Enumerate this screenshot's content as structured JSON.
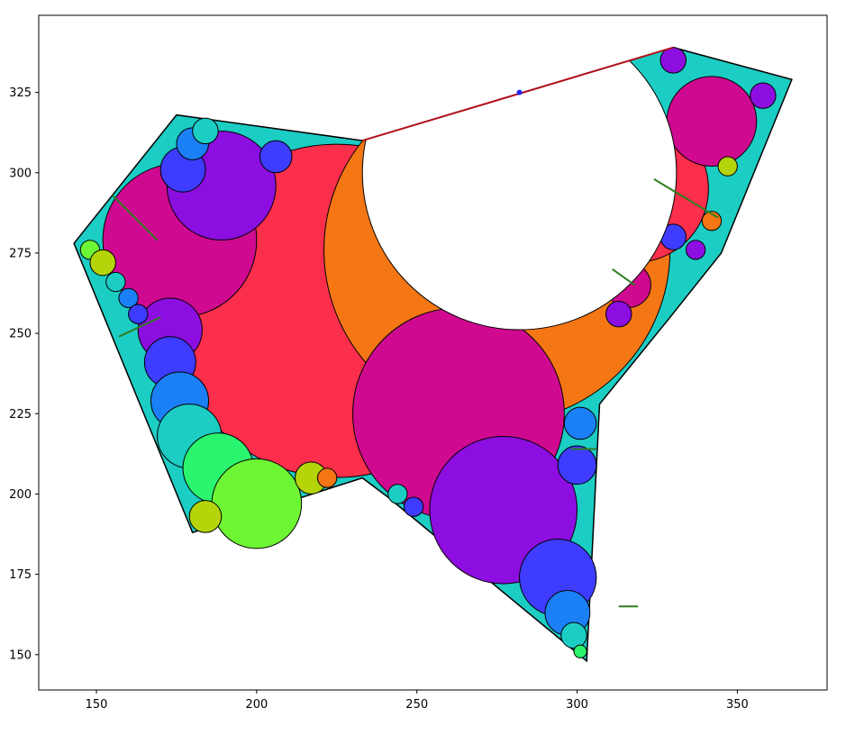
{
  "chart_data": {
    "type": "scatter",
    "description_free": true,
    "title": "",
    "xlabel": "",
    "ylabel": "",
    "xlim": [
      132,
      378
    ],
    "ylim": [
      139,
      349
    ],
    "grid": false,
    "x_ticks": [
      150,
      200,
      250,
      300,
      350
    ],
    "y_ticks": [
      150,
      175,
      200,
      225,
      250,
      275,
      300,
      325
    ],
    "x_tick_labels": [
      "150",
      "200",
      "250",
      "300",
      "350"
    ],
    "y_tick_labels": [
      "150",
      "175",
      "200",
      "225",
      "250",
      "275",
      "300",
      "325"
    ],
    "polygon": [
      [
        143,
        278
      ],
      [
        175,
        318
      ],
      [
        233,
        310
      ],
      [
        330,
        339
      ],
      [
        367,
        329
      ],
      [
        345,
        275
      ],
      [
        329,
        255
      ],
      [
        307,
        228
      ],
      [
        303,
        148
      ],
      [
        241,
        199
      ],
      [
        233,
        205
      ],
      [
        180,
        188
      ]
    ],
    "circles": [
      {
        "cx": 225,
        "cy": 257,
        "r": 52,
        "color": "#fb2e4b"
      },
      {
        "cx": 275,
        "cy": 276,
        "r": 54,
        "color": "#f47615"
      },
      {
        "cx": 263,
        "cy": 225,
        "r": 33,
        "color": "#cf0a90"
      },
      {
        "cx": 277,
        "cy": 195,
        "r": 23,
        "color": "#8c0ee0"
      },
      {
        "cx": 294,
        "cy": 174,
        "r": 12,
        "color": "#3d3cff"
      },
      {
        "cx": 297,
        "cy": 163,
        "r": 7,
        "color": "#1b7ff5"
      },
      {
        "cx": 299,
        "cy": 156,
        "r": 4,
        "color": "#1ccdc4"
      },
      {
        "cx": 301,
        "cy": 151,
        "r": 2,
        "color": "#2bf56f"
      },
      {
        "cx": 300,
        "cy": 209,
        "r": 6,
        "color": "#3d3cff"
      },
      {
        "cx": 301,
        "cy": 222,
        "r": 5,
        "color": "#1b7ff5"
      },
      {
        "cx": 318,
        "cy": 295,
        "r": 23,
        "color": "#fb2e4b"
      },
      {
        "cx": 342,
        "cy": 316,
        "r": 14,
        "color": "#cf0a90"
      },
      {
        "cx": 330,
        "cy": 335,
        "r": 4,
        "color": "#8c0ee0"
      },
      {
        "cx": 358,
        "cy": 324,
        "r": 4,
        "color": "#8c0ee0"
      },
      {
        "cx": 347,
        "cy": 302,
        "r": 3,
        "color": "#b6d40a"
      },
      {
        "cx": 342,
        "cy": 285,
        "r": 3,
        "color": "#f47615"
      },
      {
        "cx": 316,
        "cy": 265,
        "r": 7,
        "color": "#cf0a90"
      },
      {
        "cx": 313,
        "cy": 256,
        "r": 4,
        "color": "#8c0ee0"
      },
      {
        "cx": 176,
        "cy": 279,
        "r": 24,
        "color": "#cf0a90"
      },
      {
        "cx": 189,
        "cy": 296,
        "r": 17,
        "color": "#8c0ee0"
      },
      {
        "cx": 177,
        "cy": 301,
        "r": 7,
        "color": "#3d3cff"
      },
      {
        "cx": 180,
        "cy": 309,
        "r": 5,
        "color": "#1b7ff5"
      },
      {
        "cx": 184,
        "cy": 313,
        "r": 4,
        "color": "#1ccdc4"
      },
      {
        "cx": 206,
        "cy": 305,
        "r": 5,
        "color": "#3d3cff"
      },
      {
        "cx": 173,
        "cy": 251,
        "r": 10,
        "color": "#8c0ee0"
      },
      {
        "cx": 173,
        "cy": 241,
        "r": 8,
        "color": "#3d3cff"
      },
      {
        "cx": 176,
        "cy": 229,
        "r": 9,
        "color": "#1b7ff5"
      },
      {
        "cx": 179,
        "cy": 218,
        "r": 10,
        "color": "#1ccdc4"
      },
      {
        "cx": 188,
        "cy": 208,
        "r": 11,
        "color": "#2bf56f"
      },
      {
        "cx": 200,
        "cy": 197,
        "r": 14,
        "color": "#6ef534"
      },
      {
        "cx": 184,
        "cy": 193,
        "r": 5,
        "color": "#b6d40a"
      },
      {
        "cx": 217,
        "cy": 205,
        "r": 5,
        "color": "#b6d40a"
      },
      {
        "cx": 222,
        "cy": 205,
        "r": 3,
        "color": "#f47615"
      },
      {
        "cx": 148,
        "cy": 276,
        "r": 3,
        "color": "#6ef534"
      },
      {
        "cx": 152,
        "cy": 272,
        "r": 4,
        "color": "#b6d40a"
      },
      {
        "cx": 156,
        "cy": 266,
        "r": 3,
        "color": "#1ccdc4"
      },
      {
        "cx": 160,
        "cy": 261,
        "r": 3,
        "color": "#1b7ff5"
      },
      {
        "cx": 163,
        "cy": 256,
        "r": 3,
        "color": "#3d3cff"
      },
      {
        "cx": 244,
        "cy": 200,
        "r": 3,
        "color": "#1ccdc4"
      },
      {
        "cx": 249,
        "cy": 196,
        "r": 3,
        "color": "#3d3cff"
      },
      {
        "cx": 330,
        "cy": 280,
        "r": 4,
        "color": "#3d3cff"
      },
      {
        "cx": 337,
        "cy": 276,
        "r": 3,
        "color": "#8c0ee0"
      }
    ],
    "cutout_circle": {
      "cx": 282,
      "cy": 300,
      "r": 49
    },
    "chord_segment": [
      [
        233,
        310
      ],
      [
        330,
        339
      ]
    ],
    "chord_midpoint": [
      282,
      325
    ],
    "radius_lines": [
      [
        [
          155,
          293
        ],
        [
          169,
          279
        ]
      ],
      [
        [
          157,
          249
        ],
        [
          170,
          255
        ]
      ],
      [
        [
          324,
          298
        ],
        [
          344,
          286
        ]
      ],
      [
        [
          298,
          214
        ],
        [
          306,
          214
        ]
      ],
      [
        [
          311,
          270
        ],
        [
          318,
          265
        ]
      ],
      [
        [
          319,
          165
        ],
        [
          313,
          165
        ]
      ]
    ],
    "colors": {
      "outline": "#000000",
      "chord": "#b0101a",
      "midpoint": "#2222ff",
      "radius_line": "#2e7d1e",
      "polygon_fill": "#1ccdc4"
    }
  }
}
